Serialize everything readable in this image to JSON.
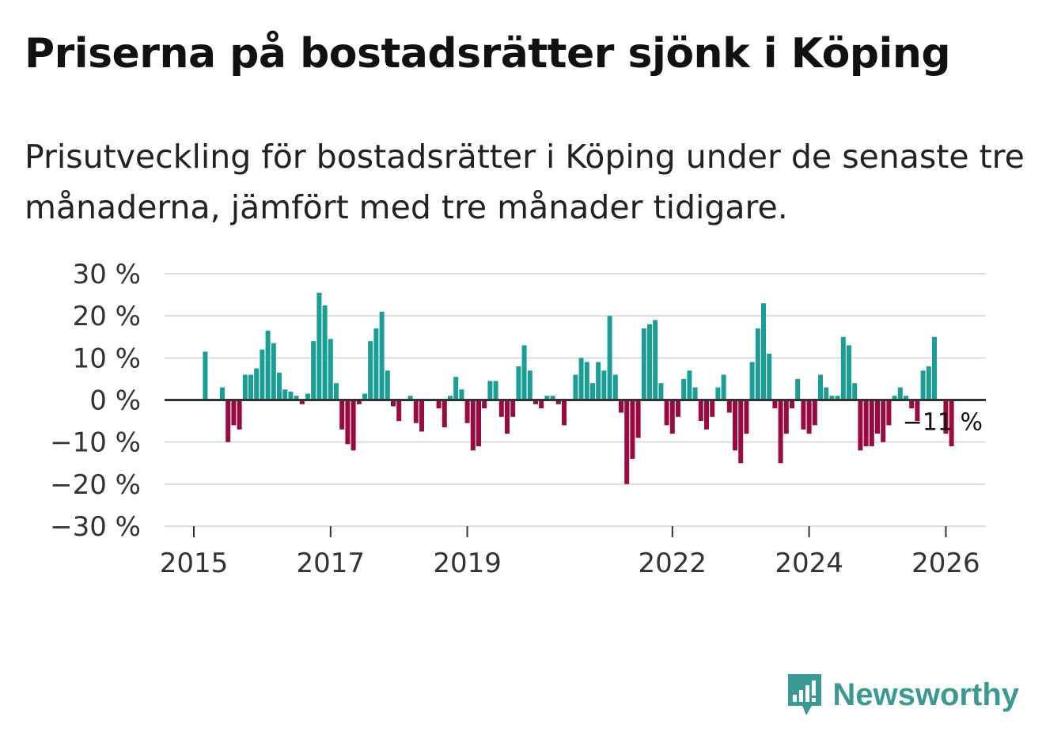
{
  "title": "Priserna på bostadsrätter sjönk i Köping",
  "subtitle": "Prisutveckling för bostadsrätter i Köping under de senaste tre månaderna, jämfört med tre månader tidigare.",
  "brand": {
    "name": "Newsworthy",
    "icon": "newsworthy-logo-icon"
  },
  "colors": {
    "positive": "#1a9e96",
    "negative": "#9a0a40",
    "grid": "#dddddd",
    "zero": "#333333",
    "brand": "#3a9a93"
  },
  "chart_data": {
    "type": "bar",
    "title": "Priserna på bostadsrätter sjönk i Köping",
    "xlabel": "",
    "ylabel": "",
    "ylim": [
      -30,
      30
    ],
    "yticks": [
      30,
      20,
      10,
      0,
      -10,
      -20,
      -30
    ],
    "ytick_labels": [
      "30 %",
      "20 %",
      "10 %",
      "0 %",
      "−10 %",
      "−20 %",
      "−30 %"
    ],
    "x_start": "2015-01",
    "frequency": "monthly",
    "xticks": [
      {
        "label": "2015",
        "index": 0
      },
      {
        "label": "2017",
        "index": 24
      },
      {
        "label": "2019",
        "index": 48
      },
      {
        "label": "2022",
        "index": 84
      },
      {
        "label": "2024",
        "index": 108
      },
      {
        "label": "2026",
        "index": 132
      }
    ],
    "values": [
      0,
      0,
      11.5,
      0,
      0,
      3,
      -10,
      -6,
      -7,
      6,
      6,
      7.5,
      12,
      16.5,
      13.5,
      6.5,
      2.5,
      2,
      1,
      -1,
      1.5,
      14,
      25.5,
      22.5,
      14.5,
      4,
      -7,
      -10.5,
      -12,
      -1,
      1.5,
      14,
      17,
      21,
      7,
      -1.5,
      -5,
      0,
      1,
      -5.5,
      -7.5,
      0,
      0,
      -2,
      -6.5,
      1,
      5.5,
      2.5,
      -5.5,
      -12,
      -11,
      -2,
      4.5,
      4.5,
      -4,
      -8,
      -4,
      8,
      13,
      7,
      -1,
      -2,
      1,
      1,
      -1,
      -6,
      0,
      6,
      10,
      9,
      4,
      9,
      7,
      20,
      6,
      -3,
      -20,
      -14,
      -9,
      17,
      18,
      19,
      4,
      -6,
      -8,
      -4,
      5,
      7,
      3,
      -5,
      -7,
      -4,
      3,
      6,
      -3,
      -12,
      -15,
      -8,
      9,
      17,
      23,
      11,
      -2,
      -15,
      -8,
      -2,
      5,
      -7,
      -8,
      -6,
      6,
      3,
      1,
      1,
      15,
      13,
      4,
      -12,
      -11,
      -11,
      -8,
      -10,
      -6,
      1,
      3,
      1,
      -2,
      -5,
      7,
      8,
      15,
      0,
      -8,
      -11
    ],
    "annotation": {
      "label": "−11 %",
      "index": 131
    }
  }
}
